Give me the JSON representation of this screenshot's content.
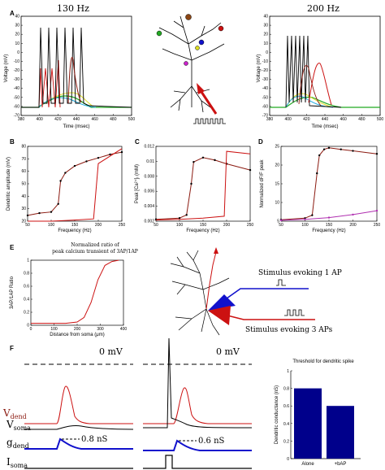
{
  "panel_labels": {
    "A": "A",
    "B": "B",
    "C": "C",
    "D": "D",
    "E": "E",
    "F": "F"
  },
  "panel_a": {
    "left_title": "130 Hz",
    "right_title": "200 Hz",
    "ylabel": "Voltage (mV)",
    "xlabel": "Time (msec)",
    "yticks": [
      "40",
      "30",
      "20",
      "10",
      "0",
      "-10",
      "-20",
      "-30",
      "-40",
      "-50",
      "-60",
      "-70"
    ],
    "xticks": [
      "380",
      "400",
      "420",
      "440",
      "460",
      "480",
      "500"
    ]
  },
  "panel_b": {
    "ylabel": "Dendritic amplitude (mV)",
    "xlabel": "Frequency (Hz)",
    "yticks": [
      "80",
      "70",
      "60",
      "50",
      "40",
      "30",
      "20"
    ],
    "xticks": [
      "50",
      "100",
      "150",
      "200",
      "250"
    ]
  },
  "panel_c": {
    "ylabel": "Peak [Ca²⁺]ᵢ (mM)",
    "xlabel": "Frequency (Hz)",
    "yticks": [
      "0.012",
      "0.01",
      "0.008",
      "0.006",
      "0.004",
      "0.002"
    ],
    "xticks": [
      "50",
      "100",
      "150",
      "200",
      "250"
    ]
  },
  "panel_d": {
    "ylabel": "Normalized dF/F peak",
    "xlabel": "Frequency (Hz)",
    "yticks": [
      "25",
      "20",
      "15",
      "10",
      "5"
    ],
    "xticks": [
      "50",
      "100",
      "150",
      "200",
      "250"
    ]
  },
  "panel_e": {
    "title_line1": "Normalized ratio of",
    "title_line2": "peak calcium transient of 3AP/1AP",
    "ylabel": "3AP/1AP Ratio",
    "xlabel": "Distance from soma (μm)",
    "yticks": [
      "1",
      "0.8",
      "0.6",
      "0.4",
      "0.2",
      "0"
    ],
    "xticks": [
      "0",
      "100",
      "200",
      "300",
      "400"
    ],
    "stim1": "Stimulus evoking 1 AP",
    "stim3": "Stimulus evoking 3 APs"
  },
  "panel_f": {
    "zero_left": "0 mV",
    "zero_right": "0 mV",
    "v_dend": "V",
    "v_dend_sub": "dend",
    "v_soma": "V",
    "v_soma_sub": "soma",
    "g_dend": "g",
    "g_dend_sub": "dend",
    "i_soma": "I",
    "i_soma_sub": "soma",
    "g_left": "0.8 nS",
    "g_right": "0.6 nS",
    "bar_title": "Threshold for dendritic spike",
    "bar_ylabel": "Dendritic conductance (nS)",
    "bar_yticks": [
      "1",
      "0.8",
      "0.6",
      "0.4",
      "0.2",
      "0"
    ]
  },
  "colors": {
    "red": "#cc1111",
    "blue": "#1111cc",
    "navy": "#00008b",
    "brown": "#8b1a10",
    "magenta": "#b030b0"
  },
  "chart_data": [
    {
      "type": "line",
      "title": "",
      "xlabel": "Frequency (Hz)",
      "ylabel": "Dendritic amplitude (mV)",
      "xlim": [
        50,
        250
      ],
      "ylim": [
        20,
        85
      ],
      "series": [
        {
          "name": "",
          "x": [
            50,
            75,
            100,
            115,
            120,
            130,
            150,
            175,
            200,
            225,
            250
          ],
          "values": [
            25,
            27,
            28,
            35,
            55,
            62,
            68,
            72,
            75,
            78,
            80
          ]
        },
        {
          "name": "",
          "x": [
            50,
            100,
            150,
            190,
            200,
            250
          ],
          "values": [
            20,
            20,
            21,
            22,
            70,
            83
          ]
        }
      ]
    },
    {
      "type": "line",
      "title": "",
      "xlabel": "Frequency (Hz)",
      "ylabel": "Peak [Ca2+]i (mM)",
      "xlim": [
        50,
        250
      ],
      "ylim": [
        0,
        0.012
      ],
      "series": [
        {
          "name": "",
          "x": [
            50,
            100,
            115,
            125,
            130,
            150,
            175,
            200,
            250
          ],
          "values": [
            0.0003,
            0.0005,
            0.001,
            0.006,
            0.0095,
            0.0102,
            0.0098,
            0.0092,
            0.0082
          ]
        },
        {
          "name": "",
          "x": [
            50,
            100,
            150,
            195,
            200,
            250
          ],
          "values": [
            0.0002,
            0.0003,
            0.0005,
            0.0008,
            0.0112,
            0.0108
          ]
        }
      ]
    },
    {
      "type": "line",
      "title": "",
      "xlabel": "Frequency (Hz)",
      "ylabel": "Normalized dF/F peak",
      "xlim": [
        50,
        250
      ],
      "ylim": [
        0,
        25
      ],
      "series": [
        {
          "name": "",
          "x": [
            50,
            100,
            115,
            125,
            130,
            140,
            150,
            175,
            200,
            250
          ],
          "values": [
            0.5,
            1,
            2,
            16,
            22,
            24,
            24.5,
            24,
            23.5,
            22.5
          ]
        },
        {
          "name": "",
          "x": [
            50,
            100,
            150,
            200,
            250
          ],
          "values": [
            0.3,
            0.6,
            1.2,
            2.2,
            3.5
          ]
        }
      ]
    },
    {
      "type": "line",
      "title": "Normalized ratio of peak calcium transient of 3AP/1AP",
      "xlabel": "Distance from soma (μm)",
      "ylabel": "3AP/1AP Ratio",
      "xlim": [
        0,
        400
      ],
      "ylim": [
        0,
        1
      ],
      "series": [
        {
          "name": "",
          "x": [
            0,
            150,
            200,
            230,
            260,
            290,
            320,
            350,
            380
          ],
          "values": [
            0.03,
            0.03,
            0.05,
            0.12,
            0.35,
            0.7,
            0.92,
            0.98,
            1.0
          ]
        }
      ]
    },
    {
      "type": "bar",
      "title": "Threshold for dendritic spike",
      "xlabel": "",
      "ylabel": "Dendritic conductance (nS)",
      "ylim": [
        0,
        1
      ],
      "categories": [
        "Alone",
        "+bAP"
      ],
      "values": [
        0.8,
        0.6
      ]
    }
  ]
}
